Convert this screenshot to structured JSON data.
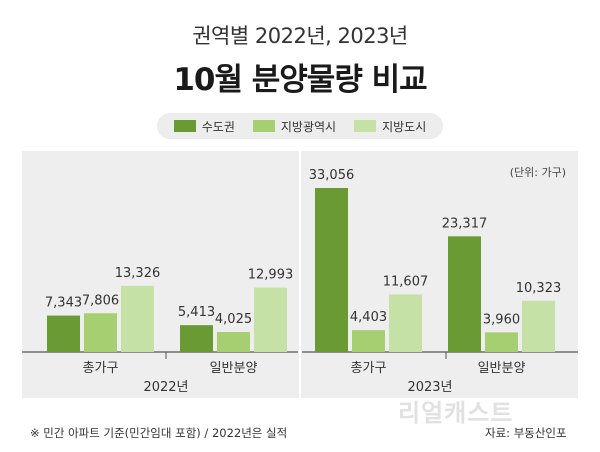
{
  "header": {
    "subtitle": "권역별 2022년, 2023년",
    "title": "10월 분양물량 비교"
  },
  "unit_label": "(단위: 가구)",
  "footer": {
    "note": "※ 민간 아파트 기준(민간임대 포함) / 2022년은 실적",
    "source": "자료: 부동산인포"
  },
  "watermark": "리얼캐스트",
  "colors": {
    "panel_bg": "#eeeeee",
    "divider": "#ffffff",
    "baseline": "#555555"
  },
  "chart_data": {
    "type": "bar",
    "title": "10월 분양물량 비교",
    "subtitle": "권역별 2022년, 2023년",
    "ylabel": "",
    "unit": "가구",
    "ylim": [
      0,
      35000
    ],
    "grid": false,
    "legend_position": "top",
    "groups": [
      {
        "label": "2022년",
        "categories": [
          "총가구",
          "일반분양"
        ]
      },
      {
        "label": "2023년",
        "categories": [
          "총가구",
          "일반분양"
        ]
      }
    ],
    "categories": [
      "총가구",
      "일반분양",
      "총가구",
      "일반분양"
    ],
    "series": [
      {
        "name": "수도권",
        "color": "#6a9a34",
        "values": [
          7343,
          5413,
          33056,
          23317
        ],
        "labels": [
          "7,343",
          "5,413",
          "33,056",
          "23,317"
        ]
      },
      {
        "name": "지방광역시",
        "color": "#a5cf70",
        "values": [
          7806,
          4025,
          4403,
          3960
        ],
        "labels": [
          "7,806",
          "4,025",
          "4,403",
          "3,960"
        ]
      },
      {
        "name": "지방도시",
        "color": "#c5e1a5",
        "values": [
          13326,
          12993,
          11607,
          10323
        ],
        "labels": [
          "13,326",
          "12,993",
          "11,607",
          "10,323"
        ]
      }
    ]
  }
}
